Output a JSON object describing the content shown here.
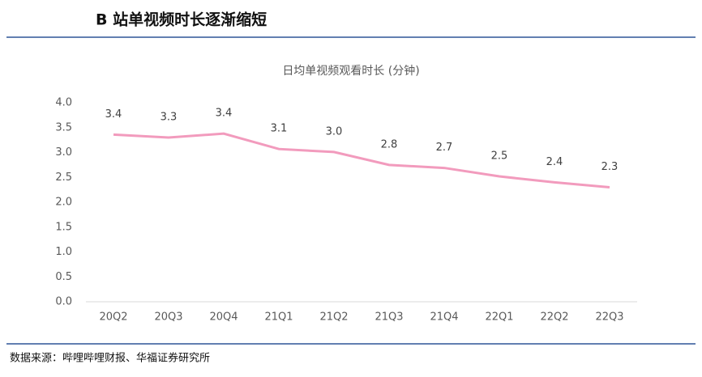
{
  "header": {
    "title": "B 站单视频时长逐渐缩短"
  },
  "chart_data": {
    "type": "line",
    "title": "日均单视频观看时长 (分钟)",
    "categories": [
      "20Q2",
      "20Q3",
      "20Q4",
      "21Q1",
      "21Q2",
      "21Q3",
      "21Q4",
      "22Q1",
      "22Q2",
      "22Q3"
    ],
    "series": [
      {
        "color": "#f29bbd",
        "values": [
          3.36,
          3.3,
          3.38,
          3.07,
          3.01,
          2.75,
          2.69,
          2.52,
          2.4,
          2.3
        ],
        "value_labels": [
          "3.4",
          "3.3",
          "3.4",
          "3.1",
          "3.0",
          "2.8",
          "2.7",
          "2.5",
          "2.4",
          "2.3"
        ]
      }
    ],
    "ylim": [
      0,
      4
    ],
    "yticks": [
      {
        "value": 0,
        "label": "0.0"
      },
      {
        "value": 0.5,
        "label": "0.5"
      },
      {
        "value": 1,
        "label": "1.0"
      },
      {
        "value": 1.5,
        "label": "1.5"
      },
      {
        "value": 2,
        "label": "2.0"
      },
      {
        "value": 2.5,
        "label": "2.5"
      },
      {
        "value": 3,
        "label": "3.0"
      },
      {
        "value": 3.5,
        "label": "3.5"
      },
      {
        "value": 4,
        "label": "4.0"
      }
    ]
  },
  "footer": {
    "source": "数据来源：哔哩哔哩财报、华福证券研究所"
  }
}
